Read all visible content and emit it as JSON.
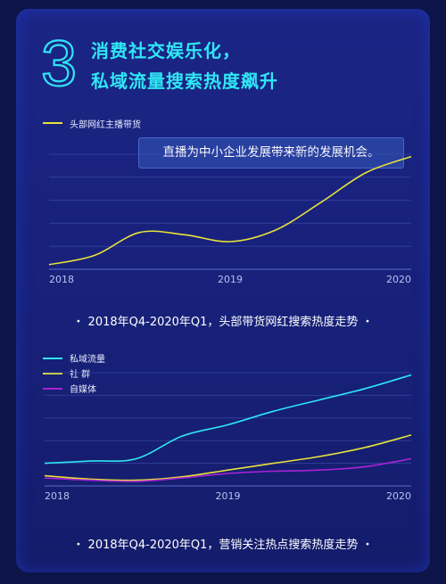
{
  "header": {
    "number": "3",
    "line1": "消费社交娱乐化，",
    "line2": "私域流量搜索热度飙升"
  },
  "colors": {
    "cyan": "#2ee6f5",
    "yellow": "#e8e23a",
    "purple": "#a823d6",
    "grid": "#3a4aa8"
  },
  "callout": "直播为中小企业发展带来新的发展机会。",
  "chart_data": [
    {
      "type": "line",
      "title": "",
      "xlabel": "",
      "ylabel": "",
      "x_ticks": [
        "2018",
        "2019",
        "2020"
      ],
      "x": [
        2018.0,
        2018.25,
        2018.5,
        2018.75,
        2019.0,
        2019.25,
        2019.5,
        2019.75,
        2020.0
      ],
      "ylim": [
        0,
        100
      ],
      "grid": true,
      "legend": "top-left",
      "series": [
        {
          "name": "头部网红主播带货",
          "color": "#e8e23a",
          "values": [
            4,
            12,
            32,
            30,
            24,
            34,
            58,
            84,
            98
          ]
        }
      ],
      "caption": "・ 2018年Q4-2020年Q1，头部带货网红搜索热度走势 ・"
    },
    {
      "type": "line",
      "title": "",
      "xlabel": "",
      "ylabel": "",
      "x_ticks": [
        "2018",
        "2019",
        "2020"
      ],
      "x": [
        2018.0,
        2018.25,
        2018.5,
        2018.75,
        2019.0,
        2019.25,
        2019.5,
        2019.75,
        2020.0
      ],
      "ylim": [
        0,
        100
      ],
      "grid": true,
      "legend": "top-left",
      "series": [
        {
          "name": "私域流量",
          "color": "#2ee6f5",
          "values": [
            20,
            22,
            24,
            44,
            54,
            66,
            76,
            86,
            98
          ]
        },
        {
          "name": "社 群",
          "color": "#e8e23a",
          "values": [
            9,
            6,
            5,
            8,
            14,
            20,
            26,
            34,
            45
          ]
        },
        {
          "name": "自媒体",
          "color": "#a823d6",
          "values": [
            7,
            5,
            4,
            7,
            11,
            13,
            14,
            17,
            24
          ]
        }
      ],
      "caption": "・ 2018年Q4-2020年Q1，营销关注热点搜索热度走势 ・"
    }
  ]
}
